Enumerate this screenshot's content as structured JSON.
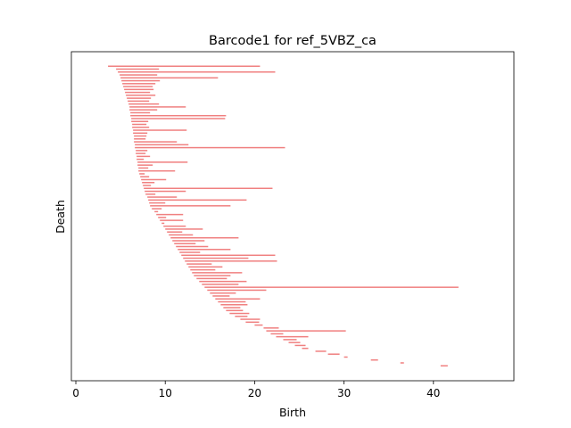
{
  "chart_data": {
    "type": "barcode",
    "title": "Barcode1 for ref_5VBZ_ca",
    "xlabel": "Birth",
    "ylabel": "Death",
    "xlim": [
      -0.5,
      49
    ],
    "xticks": [
      0,
      10,
      20,
      30,
      40
    ],
    "yticks_shown": false,
    "bar_color": "#f08080",
    "intervals": [
      [
        3.6,
        20.6
      ],
      [
        4.5,
        9.3
      ],
      [
        4.7,
        22.3
      ],
      [
        4.9,
        9.1
      ],
      [
        5.0,
        15.9
      ],
      [
        5.1,
        9.4
      ],
      [
        5.2,
        8.9
      ],
      [
        5.3,
        8.6
      ],
      [
        5.4,
        8.7
      ],
      [
        5.5,
        8.3
      ],
      [
        5.6,
        8.9
      ],
      [
        5.7,
        8.4
      ],
      [
        5.8,
        8.2
      ],
      [
        5.9,
        9.3
      ],
      [
        6.0,
        12.3
      ],
      [
        6.0,
        9.1
      ],
      [
        6.1,
        8.3
      ],
      [
        6.1,
        16.8
      ],
      [
        6.2,
        16.7
      ],
      [
        6.2,
        8.1
      ],
      [
        6.3,
        7.9
      ],
      [
        6.3,
        8.2
      ],
      [
        6.4,
        12.4
      ],
      [
        6.4,
        8.0
      ],
      [
        6.5,
        7.9
      ],
      [
        6.5,
        7.8
      ],
      [
        6.5,
        11.3
      ],
      [
        6.6,
        12.6
      ],
      [
        6.6,
        23.4
      ],
      [
        6.7,
        8.0
      ],
      [
        6.7,
        7.8
      ],
      [
        6.8,
        8.3
      ],
      [
        6.8,
        7.6
      ],
      [
        6.9,
        12.5
      ],
      [
        6.9,
        8.6
      ],
      [
        7.0,
        8.1
      ],
      [
        7.0,
        11.1
      ],
      [
        7.1,
        7.7
      ],
      [
        7.2,
        8.2
      ],
      [
        7.3,
        10.1
      ],
      [
        7.4,
        8.8
      ],
      [
        7.5,
        8.4
      ],
      [
        7.6,
        22.0
      ],
      [
        7.7,
        12.3
      ],
      [
        7.8,
        8.9
      ],
      [
        8.0,
        11.3
      ],
      [
        8.1,
        19.1
      ],
      [
        8.2,
        10.0
      ],
      [
        8.3,
        17.3
      ],
      [
        8.5,
        9.6
      ],
      [
        8.8,
        9.2
      ],
      [
        9.0,
        12.0
      ],
      [
        9.2,
        10.1
      ],
      [
        9.4,
        12.0
      ],
      [
        9.6,
        9.9
      ],
      [
        9.8,
        12.3
      ],
      [
        10.0,
        14.2
      ],
      [
        10.2,
        11.9
      ],
      [
        10.4,
        13.1
      ],
      [
        10.6,
        18.2
      ],
      [
        10.8,
        14.4
      ],
      [
        11.0,
        13.4
      ],
      [
        11.2,
        14.8
      ],
      [
        11.4,
        17.3
      ],
      [
        11.6,
        13.9
      ],
      [
        11.8,
        22.3
      ],
      [
        12.0,
        19.3
      ],
      [
        12.2,
        22.5
      ],
      [
        12.4,
        15.2
      ],
      [
        12.6,
        16.4
      ],
      [
        12.8,
        15.6
      ],
      [
        13.0,
        18.6
      ],
      [
        13.2,
        17.3
      ],
      [
        13.5,
        16.9
      ],
      [
        13.8,
        19.1
      ],
      [
        14.1,
        18.2
      ],
      [
        14.4,
        42.8
      ],
      [
        14.7,
        21.3
      ],
      [
        15.0,
        17.9
      ],
      [
        15.3,
        17.2
      ],
      [
        15.6,
        20.6
      ],
      [
        15.9,
        19.0
      ],
      [
        16.2,
        19.2
      ],
      [
        16.5,
        18.4
      ],
      [
        16.8,
        18.7
      ],
      [
        17.2,
        19.4
      ],
      [
        17.8,
        19.2
      ],
      [
        18.4,
        20.6
      ],
      [
        19.0,
        20.5
      ],
      [
        20.0,
        20.9
      ],
      [
        21.0,
        22.7
      ],
      [
        21.3,
        30.2
      ],
      [
        21.8,
        23.2
      ],
      [
        22.4,
        26.0
      ],
      [
        23.2,
        24.7
      ],
      [
        23.8,
        25.1
      ],
      [
        24.5,
        25.7
      ],
      [
        25.3,
        26.0
      ],
      [
        26.8,
        28.0
      ],
      [
        28.2,
        29.5
      ],
      [
        30.0,
        30.4
      ],
      [
        33.0,
        33.8
      ],
      [
        36.3,
        36.7
      ],
      [
        40.8,
        41.6
      ]
    ]
  }
}
